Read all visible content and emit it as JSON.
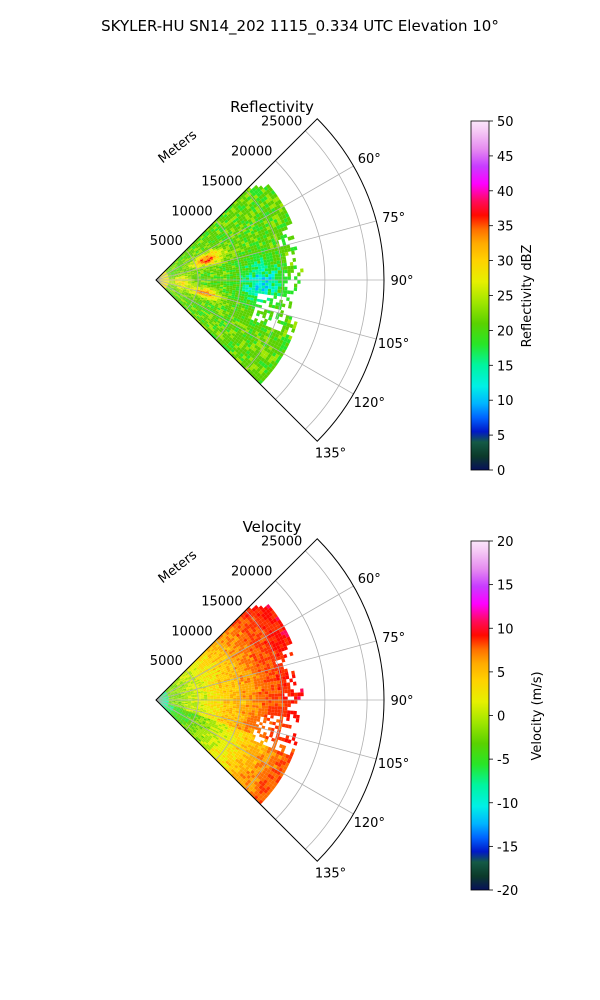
{
  "suptitle": "SKYLER-HU  SN14_202  1115_0.334 UTC Elevation 10°",
  "chart_data": [
    {
      "type": "heatmap",
      "projection": "polar-sector",
      "title": "Reflectivity",
      "radial_label": "Meters",
      "radial_ticks": [
        "5000",
        "10000",
        "15000",
        "20000",
        "25000"
      ],
      "radial_tick_values": [
        5000,
        10000,
        15000,
        20000,
        25000
      ],
      "rmax": 27000,
      "theta_ticks": [
        "60°",
        "75°",
        "90°",
        "105°",
        "120°",
        "135°"
      ],
      "theta_tick_values": [
        60,
        75,
        90,
        105,
        120,
        135
      ],
      "theta_range": [
        45,
        135
      ],
      "grid": true,
      "data_azimuth_range": [
        45,
        135
      ],
      "colorbar": {
        "label": "Reflectivity dBZ",
        "ticks": [
          "0",
          "5",
          "10",
          "15",
          "20",
          "25",
          "30",
          "35",
          "40",
          "45",
          "50"
        ],
        "range": [
          0,
          50
        ]
      }
    },
    {
      "type": "heatmap",
      "projection": "polar-sector",
      "title": "Velocity",
      "radial_label": "Meters",
      "radial_ticks": [
        "5000",
        "10000",
        "15000",
        "20000",
        "25000"
      ],
      "radial_tick_values": [
        5000,
        10000,
        15000,
        20000,
        25000
      ],
      "rmax": 27000,
      "theta_ticks": [
        "60°",
        "75°",
        "90°",
        "105°",
        "120°",
        "135°"
      ],
      "theta_tick_values": [
        60,
        75,
        90,
        105,
        120,
        135
      ],
      "theta_range": [
        45,
        135
      ],
      "grid": true,
      "data_azimuth_range": [
        45,
        135
      ],
      "colorbar": {
        "label": "Velocity (m/s)",
        "ticks": [
          "-20",
          "-15",
          "-10",
          "-5",
          "0",
          "5",
          "10",
          "15",
          "20"
        ],
        "range": [
          -20,
          20
        ]
      }
    }
  ]
}
